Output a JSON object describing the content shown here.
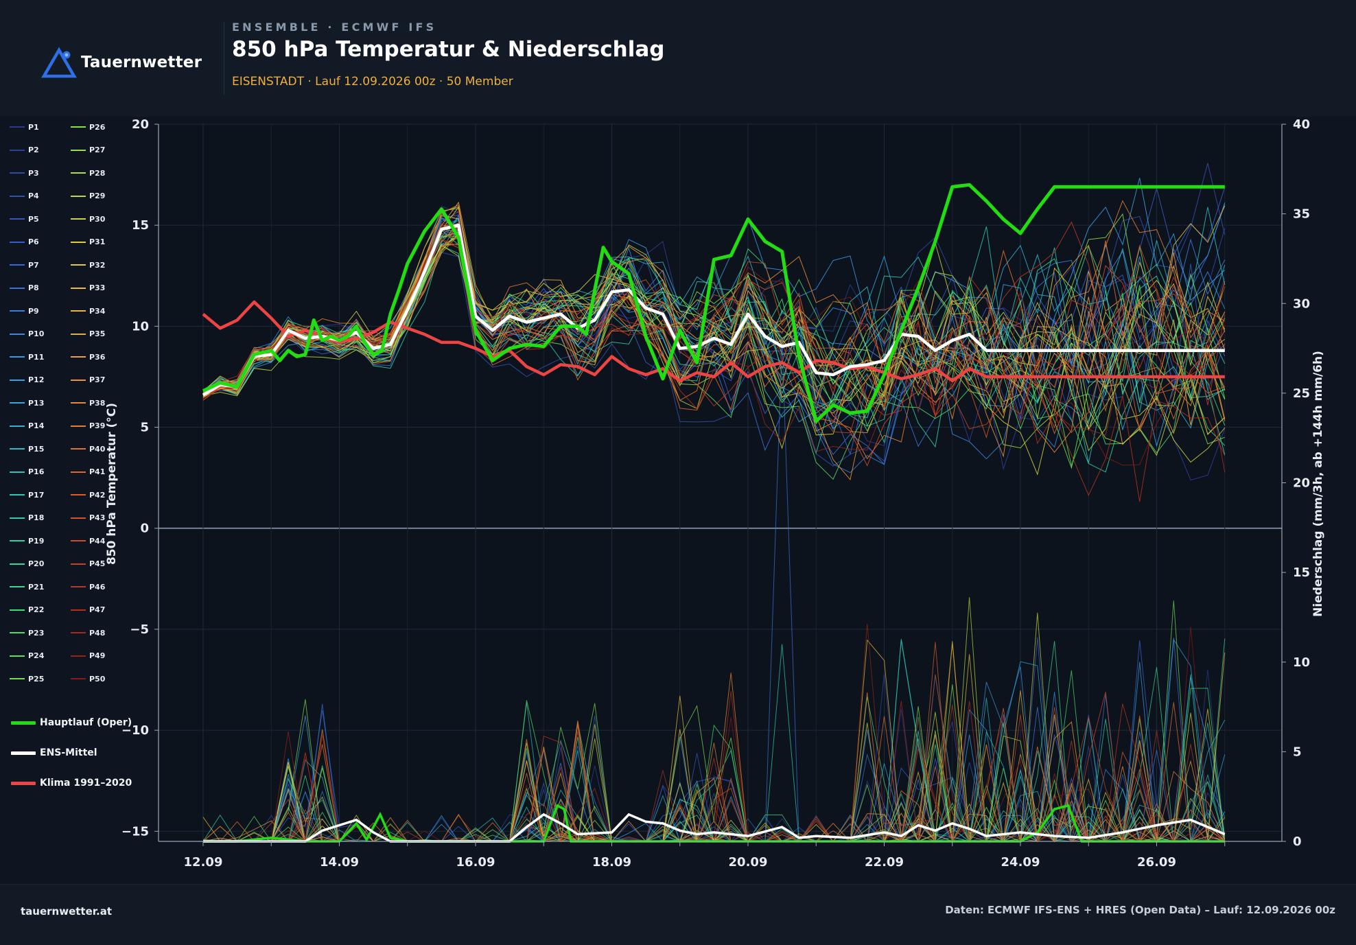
{
  "header": {
    "logo_text": "Tauernwetter",
    "subtitle": "ENSEMBLE · ECMWF IFS",
    "title": "850 hPa Temperatur & Niederschlag",
    "run_info": "EISENSTADT · Lauf 12.09.2026 00z · 50 Member"
  },
  "footer": {
    "site": "tauernwetter.at",
    "source": "Daten: ECMWF IFS-ENS + HRES (Open Data) – Lauf: 12.09.2026 00z"
  },
  "colors": {
    "background": "#0f1520",
    "panel": "#121a26",
    "accent_orange": "#f0b03c",
    "brand_blue": "#2f6fe6",
    "oper": "#22dd11",
    "mean": "#ffffff",
    "climate": "#ee4444"
  },
  "legend": {
    "members": [
      "P1",
      "P2",
      "P3",
      "P4",
      "P5",
      "P6",
      "P7",
      "P8",
      "P9",
      "P10",
      "P11",
      "P12",
      "P13",
      "P14",
      "P15",
      "P16",
      "P17",
      "P18",
      "P19",
      "P20",
      "P21",
      "P22",
      "P23",
      "P24",
      "P25",
      "P26",
      "P27",
      "P28",
      "P29",
      "P30",
      "P31",
      "P32",
      "P33",
      "P34",
      "P35",
      "P36",
      "P37",
      "P38",
      "P39",
      "P40",
      "P41",
      "P42",
      "P43",
      "P44",
      "P45",
      "P46",
      "P47",
      "P48",
      "P49",
      "P50"
    ],
    "oper_label": "Hauptlauf (Oper)",
    "mean_label": "ENS-Mittel",
    "climate_label": "Klima 1991–2020"
  },
  "chart_data": {
    "type": "line",
    "ylabel": "850 hPa Temperatur (°C)",
    "y2label": "Niederschlag (mm/3h, ab +144h mm/6h)",
    "x_ticks": [
      "12.09",
      "14.09",
      "16.09",
      "18.09",
      "20.09",
      "22.09",
      "24.09",
      "26.09"
    ],
    "x_start": "12.09.2026 00z",
    "ylim": [
      -15.5,
      20
    ],
    "yticks": [
      -15,
      -10,
      -5,
      0,
      5,
      10,
      15,
      20
    ],
    "y2lim": [
      0,
      40
    ],
    "y2ticks": [
      0,
      5,
      10,
      15,
      20,
      25,
      30,
      35,
      40
    ],
    "grid": true,
    "legend_position": "left",
    "member_count": 50,
    "series": [
      {
        "name": "Hauptlauf (Oper)",
        "color": "#22dd11",
        "x_days": [
          0,
          0.25,
          0.5,
          0.75,
          1,
          1.125,
          1.25,
          1.375,
          1.5,
          1.625,
          1.75,
          1.875,
          2,
          2.125,
          2.25,
          2.375,
          2.5,
          2.625,
          2.75,
          2.875,
          3,
          3.25,
          3.5,
          3.75,
          4,
          4.25,
          4.5,
          4.75,
          5,
          5.25,
          5.5,
          5.625,
          5.75,
          5.875,
          6,
          6.25,
          6.5,
          6.75,
          7,
          7.25,
          7.5,
          7.75,
          8,
          8.25,
          8.5,
          8.75,
          9,
          9.25,
          9.5,
          9.75,
          10,
          10.25,
          10.5,
          10.75,
          11,
          11.25,
          11.5,
          11.75,
          12,
          12.25,
          12.5,
          12.75,
          13,
          13.25,
          13.5,
          13.75,
          14,
          14.25,
          14.5,
          14.75,
          15
        ],
        "values": [
          6.8,
          7.2,
          7.0,
          8.6,
          8.8,
          8.3,
          8.8,
          8.5,
          8.6,
          10.3,
          9.3,
          9.5,
          9.3,
          9.5,
          10.0,
          9.2,
          8.6,
          8.8,
          10.6,
          11.8,
          13.1,
          14.7,
          15.8,
          14.4,
          9.8,
          8.3,
          8.9,
          9.1,
          9.0,
          10.0,
          10.0,
          9.6,
          11.8,
          13.9,
          13.2,
          12.6,
          9.5,
          7.4,
          9.8,
          8.2,
          13.3,
          13.5,
          15.3,
          14.2,
          13.7,
          8.5,
          5.3,
          6.1,
          5.7,
          5.8,
          7.6,
          9.8,
          11.9,
          14.2,
          16.9,
          17.0,
          16.2,
          15.3,
          14.6,
          15.8,
          16.9,
          16.9,
          16.9,
          16.9,
          16.9,
          16.9,
          16.9,
          16.9,
          16.9,
          16.9,
          16.9
        ]
      },
      {
        "name": "ENS-Mittel",
        "color": "#ffffff",
        "x_days": [
          0,
          0.25,
          0.5,
          0.75,
          1,
          1.25,
          1.5,
          1.75,
          2,
          2.25,
          2.5,
          2.75,
          3,
          3.25,
          3.5,
          3.75,
          4,
          4.25,
          4.5,
          4.75,
          5,
          5.25,
          5.5,
          5.75,
          6,
          6.25,
          6.5,
          6.75,
          7,
          7.25,
          7.5,
          7.75,
          8,
          8.25,
          8.5,
          8.75,
          9,
          9.25,
          9.5,
          9.75,
          10,
          10.25,
          10.5,
          10.75,
          11,
          11.25,
          11.5,
          11.75,
          12,
          12.25,
          12.5,
          12.75,
          13,
          13.25,
          13.5,
          13.75,
          14,
          14.25,
          14.5,
          14.75,
          15
        ],
        "values": [
          6.6,
          7.1,
          7.0,
          8.5,
          8.6,
          9.8,
          9.4,
          9.5,
          9.3,
          9.7,
          8.9,
          9.1,
          10.8,
          12.7,
          14.8,
          15.0,
          10.5,
          9.8,
          10.5,
          10.2,
          10.4,
          10.6,
          9.9,
          10.3,
          11.7,
          11.8,
          10.9,
          10.6,
          8.9,
          9.0,
          9.4,
          9.1,
          10.6,
          9.5,
          9.0,
          9.2,
          7.7,
          7.6,
          8.0,
          8.1,
          8.3,
          9.6,
          9.5,
          8.8,
          9.3,
          9.6,
          8.8,
          8.8,
          8.8,
          8.8,
          8.8,
          8.8,
          8.8,
          8.8,
          8.8,
          8.8,
          8.8,
          8.8,
          8.8,
          8.8,
          8.8
        ]
      },
      {
        "name": "Klima 1991–2020",
        "color": "#ee4444",
        "x_days": [
          0,
          0.25,
          0.5,
          0.75,
          1,
          1.25,
          1.5,
          1.75,
          2,
          2.25,
          2.5,
          2.75,
          3,
          3.25,
          3.5,
          3.75,
          4,
          4.25,
          4.5,
          4.75,
          5,
          5.25,
          5.5,
          5.75,
          6,
          6.25,
          6.5,
          6.75,
          7,
          7.25,
          7.5,
          7.75,
          8,
          8.25,
          8.5,
          8.75,
          9,
          9.25,
          9.5,
          9.75,
          10,
          10.25,
          10.5,
          10.75,
          11,
          11.25,
          11.5,
          11.75,
          12,
          12.25,
          12.5,
          12.75,
          13,
          13.25,
          13.5,
          13.75,
          14,
          14.25,
          14.5,
          14.75,
          15
        ],
        "values": [
          10.6,
          9.9,
          10.3,
          11.2,
          10.4,
          9.5,
          9.8,
          9.5,
          9.2,
          9.4,
          9.7,
          10.2,
          9.9,
          9.6,
          9.2,
          9.2,
          8.9,
          8.5,
          8.8,
          8.0,
          7.6,
          8.1,
          8.0,
          7.6,
          8.5,
          7.9,
          7.6,
          7.9,
          7.3,
          7.7,
          7.5,
          8.2,
          7.5,
          8.0,
          8.2,
          7.7,
          8.3,
          8.2,
          7.9,
          8.0,
          7.7,
          7.4,
          7.6,
          7.9,
          7.3,
          7.9,
          7.5,
          7.5,
          7.5,
          7.5,
          7.5,
          7.5,
          7.5,
          7.5,
          7.5,
          7.5,
          7.5,
          7.5,
          7.5,
          7.5,
          7.5
        ]
      }
    ]
  }
}
